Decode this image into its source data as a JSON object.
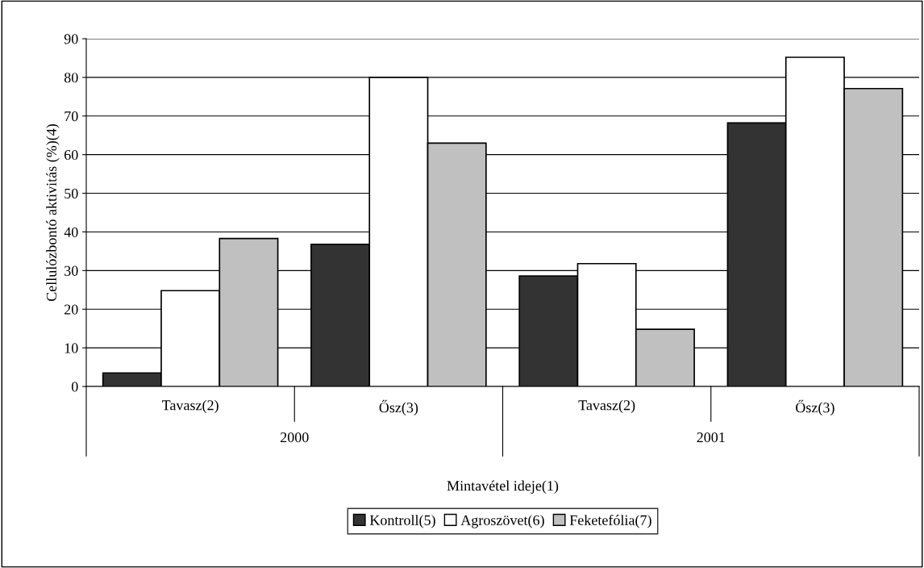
{
  "chart_data": {
    "type": "bar",
    "ylabel": "Cellulózbontó aktivitás (%)(4)",
    "xlabel": "Mintavétel ideje(1)",
    "categories": [
      "Tavasz(2)",
      "Ősz(3)",
      "Tavasz(2)",
      "Ősz(3)"
    ],
    "annotations": [
      "2000",
      "2001"
    ],
    "series": [
      {
        "name": "Kontroll(5)",
        "color": "#333333",
        "values": [
          3.5,
          36.8,
          28.6,
          68.2
        ]
      },
      {
        "name": "Agroszövet(6)",
        "color": "#ffffff",
        "values": [
          24.8,
          80,
          31.8,
          85.2
        ]
      },
      {
        "name": "Feketefólia(7)",
        "color": "#c0c0c0",
        "values": [
          38.3,
          63,
          14.8,
          77.1
        ]
      }
    ],
    "ylim": [
      0,
      90
    ],
    "yticks": [
      0,
      10,
      20,
      30,
      40,
      50,
      60,
      70,
      80,
      90
    ],
    "grid": "y",
    "legend": "bottom"
  }
}
